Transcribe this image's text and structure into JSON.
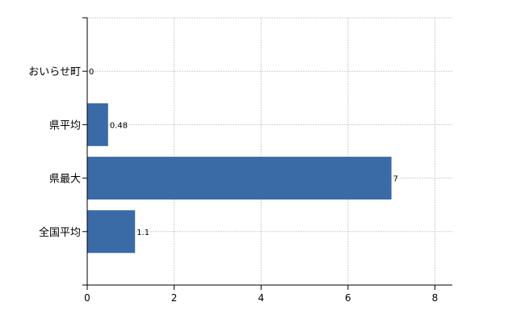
{
  "chart_data": {
    "type": "bar",
    "orientation": "horizontal",
    "categories": [
      "おいらせ町",
      "県平均",
      "県最大",
      "全国平均"
    ],
    "values": [
      0,
      0.48,
      7,
      1.1
    ],
    "value_labels": [
      "0",
      "0.48",
      "7",
      "1.1"
    ],
    "xlim": [
      0,
      8.4
    ],
    "xticks": [
      0,
      2,
      4,
      6,
      8
    ],
    "grid": true,
    "bar_color": "#3a6ba7"
  }
}
